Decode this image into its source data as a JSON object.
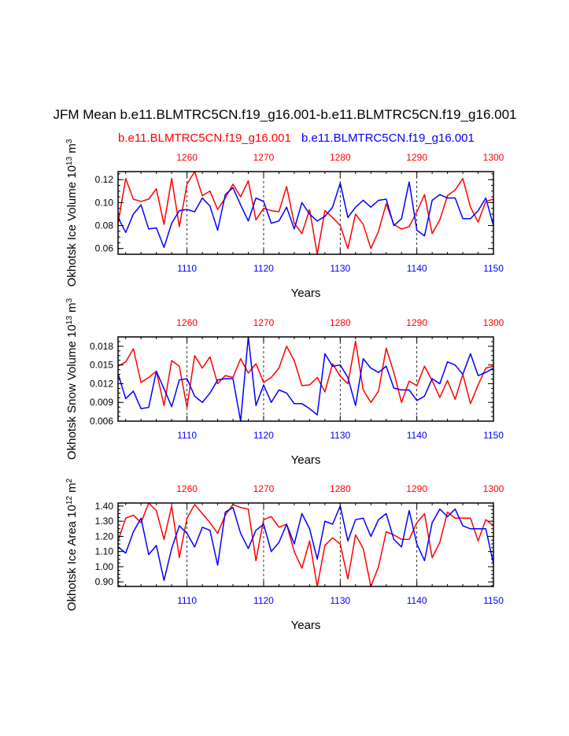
{
  "title": "JFM Mean b.e11.BLMTRC5CN.f19_g16.001-b.e11.BLMTRC5CN.f19_g16.001",
  "legend": {
    "red_label": "b.e11.BLMTRC5CN.f19_g16.001",
    "blue_label": "b.e11.BLMTRC5CN.f19_g16.001"
  },
  "colors": {
    "red": "#ff0000",
    "blue": "#0000ff",
    "frame": "#000000",
    "grid": "#000000"
  },
  "chart_data": [
    {
      "type": "line",
      "ylabel": "Okhotsk Ice Volume 10^13 m^3",
      "ylabel_parts": {
        "main": "Okhotsk Ice Volume 10",
        "exp": "13",
        "unit": " m",
        "unit_exp": "3"
      },
      "xlabel": "Years",
      "ylim": [
        0.055,
        0.127
      ],
      "yticks": [
        0.06,
        0.08,
        0.1,
        0.12
      ],
      "ytick_labels": [
        "0.06",
        "0.08",
        "0.10",
        "0.12"
      ],
      "bottom_axis": {
        "range": [
          1101,
          1150
        ],
        "ticks": [
          1110,
          1120,
          1130,
          1140,
          1150
        ],
        "labels": [
          "1110",
          "1120",
          "1130",
          "1140",
          "1150"
        ]
      },
      "top_axis": {
        "range": [
          1251,
          1300
        ],
        "ticks": [
          1260,
          1270,
          1280,
          1290,
          1300
        ],
        "labels": [
          "1260",
          "1270",
          "1280",
          "1290",
          "1300"
        ]
      },
      "series": [
        {
          "name": "b.e11.BLMTRC5CN.f19_g16.001",
          "color": "#ff0000",
          "axis": "top",
          "start": 1251,
          "values": [
            0.082,
            0.121,
            0.103,
            0.101,
            0.103,
            0.112,
            0.081,
            0.121,
            0.079,
            0.116,
            0.127,
            0.106,
            0.11,
            0.094,
            0.104,
            0.116,
            0.105,
            0.119,
            0.085,
            0.095,
            0.093,
            0.092,
            0.114,
            0.082,
            0.073,
            0.094,
            0.055,
            0.093,
            0.087,
            0.08,
            0.06,
            0.09,
            0.081,
            0.06,
            0.075,
            0.099,
            0.081,
            0.077,
            0.079,
            0.092,
            0.107,
            0.073,
            0.085,
            0.106,
            0.111,
            0.121,
            0.096,
            0.083,
            0.101,
            0.103
          ]
        },
        {
          "name": "b.e11.BLMTRC5CN.f19_g16.001",
          "color": "#0000ff",
          "axis": "bottom",
          "start": 1101,
          "values": [
            0.087,
            0.074,
            0.09,
            0.098,
            0.077,
            0.078,
            0.061,
            0.082,
            0.093,
            0.094,
            0.092,
            0.104,
            0.097,
            0.076,
            0.107,
            0.113,
            0.098,
            0.084,
            0.104,
            0.101,
            0.082,
            0.084,
            0.096,
            0.077,
            0.1,
            0.09,
            0.084,
            0.088,
            0.096,
            0.117,
            0.087,
            0.096,
            0.102,
            0.096,
            0.102,
            0.103,
            0.08,
            0.086,
            0.118,
            0.076,
            0.071,
            0.102,
            0.107,
            0.104,
            0.104,
            0.086,
            0.086,
            0.093,
            0.104,
            0.08
          ]
        }
      ]
    },
    {
      "type": "line",
      "ylabel": "Okhotsk Snow Volume 10^13 m^3",
      "ylabel_parts": {
        "main": "Okhotsk Snow Volume 10",
        "exp": "13",
        "unit": " m",
        "unit_exp": "3"
      },
      "xlabel": "Years",
      "ylim": [
        0.006,
        0.0195
      ],
      "yticks": [
        0.006,
        0.009,
        0.012,
        0.015,
        0.018
      ],
      "ytick_labels": [
        "0.006",
        "0.009",
        "0.012",
        "0.015",
        "0.018"
      ],
      "bottom_axis": {
        "range": [
          1101,
          1150
        ],
        "ticks": [
          1110,
          1120,
          1130,
          1140,
          1150
        ],
        "labels": [
          "1110",
          "1120",
          "1130",
          "1140",
          "1150"
        ]
      },
      "top_axis": {
        "range": [
          1251,
          1300
        ],
        "ticks": [
          1260,
          1270,
          1280,
          1290,
          1300
        ],
        "labels": [
          "1260",
          "1270",
          "1280",
          "1290",
          "1300"
        ]
      },
      "series": [
        {
          "name": "b.e11.BLMTRC5CN.f19_g16.001",
          "color": "#ff0000",
          "axis": "top",
          "start": 1251,
          "values": [
            0.0148,
            0.0155,
            0.0176,
            0.0122,
            0.013,
            0.014,
            0.0085,
            0.0157,
            0.0148,
            0.0082,
            0.0165,
            0.0145,
            0.0163,
            0.012,
            0.0133,
            0.013,
            0.016,
            0.0137,
            0.0152,
            0.0122,
            0.013,
            0.0145,
            0.018,
            0.0157,
            0.0117,
            0.0118,
            0.013,
            0.0107,
            0.0152,
            0.0132,
            0.012,
            0.0188,
            0.011,
            0.009,
            0.0108,
            0.0177,
            0.0138,
            0.009,
            0.0124,
            0.0117,
            0.0148,
            0.0125,
            0.0098,
            0.0125,
            0.0095,
            0.0135,
            0.0088,
            0.0118,
            0.0145,
            0.0148
          ]
        },
        {
          "name": "b.e11.BLMTRC5CN.f19_g16.001",
          "color": "#0000ff",
          "axis": "bottom",
          "start": 1101,
          "values": [
            0.0136,
            0.0096,
            0.0108,
            0.008,
            0.0082,
            0.014,
            0.0112,
            0.0083,
            0.0126,
            0.0128,
            0.01,
            0.009,
            0.0105,
            0.0126,
            0.0128,
            0.0128,
            0.006,
            0.0195,
            0.0085,
            0.0118,
            0.009,
            0.011,
            0.0105,
            0.0088,
            0.0088,
            0.008,
            0.007,
            0.0168,
            0.0148,
            0.015,
            0.013,
            0.0085,
            0.016,
            0.0145,
            0.0138,
            0.0148,
            0.0113,
            0.011,
            0.011,
            0.0093,
            0.01,
            0.0128,
            0.012,
            0.0155,
            0.015,
            0.0135,
            0.0168,
            0.0133,
            0.0138,
            0.0145
          ]
        }
      ]
    },
    {
      "type": "line",
      "ylabel": "Okhotsk Ice Area 10^12 m^2",
      "ylabel_parts": {
        "main": "Okhotsk Ice Area 10",
        "exp": "12",
        "unit": " m",
        "unit_exp": "2"
      },
      "xlabel": "Years",
      "ylim": [
        0.87,
        1.42
      ],
      "yticks": [
        0.9,
        1.0,
        1.1,
        1.2,
        1.3,
        1.4
      ],
      "ytick_labels": [
        "0.90",
        "1.00",
        "1.10",
        "1.20",
        "1.30",
        "1.40"
      ],
      "bottom_axis": {
        "range": [
          1101,
          1150
        ],
        "ticks": [
          1110,
          1120,
          1130,
          1140,
          1150
        ],
        "labels": [
          "1110",
          "1120",
          "1130",
          "1140",
          "1150"
        ]
      },
      "top_axis": {
        "range": [
          1251,
          1300
        ],
        "ticks": [
          1260,
          1270,
          1280,
          1290,
          1300
        ],
        "labels": [
          "1260",
          "1270",
          "1280",
          "1290",
          "1300"
        ]
      },
      "series": [
        {
          "name": "b.e11.BLMTRC5CN.f19_g16.001",
          "color": "#ff0000",
          "axis": "top",
          "start": 1251,
          "values": [
            1.17,
            1.32,
            1.34,
            1.29,
            1.42,
            1.37,
            1.18,
            1.4,
            1.06,
            1.32,
            1.41,
            1.35,
            1.29,
            1.22,
            1.34,
            1.41,
            1.39,
            1.38,
            1.04,
            1.31,
            1.33,
            1.26,
            1.28,
            1.1,
            0.99,
            1.17,
            0.87,
            1.14,
            1.19,
            1.15,
            0.92,
            1.21,
            1.12,
            0.87,
            1.0,
            1.23,
            1.21,
            1.18,
            1.18,
            1.29,
            1.35,
            1.06,
            1.16,
            1.36,
            1.32,
            1.32,
            1.32,
            1.17,
            1.31,
            1.27
          ]
        },
        {
          "name": "b.e11.BLMTRC5CN.f19_g16.001",
          "color": "#0000ff",
          "axis": "bottom",
          "start": 1101,
          "values": [
            1.13,
            1.09,
            1.23,
            1.32,
            1.08,
            1.14,
            0.91,
            1.12,
            1.27,
            1.22,
            1.13,
            1.26,
            1.24,
            1.01,
            1.36,
            1.39,
            1.22,
            1.12,
            1.24,
            1.28,
            1.1,
            1.16,
            1.28,
            1.15,
            1.35,
            1.25,
            1.05,
            1.3,
            1.28,
            1.4,
            1.17,
            1.31,
            1.32,
            1.2,
            1.31,
            1.35,
            1.18,
            1.13,
            1.37,
            1.15,
            1.04,
            1.29,
            1.38,
            1.33,
            1.38,
            1.27,
            1.25,
            1.25,
            1.25,
            1.02
          ]
        }
      ]
    }
  ]
}
